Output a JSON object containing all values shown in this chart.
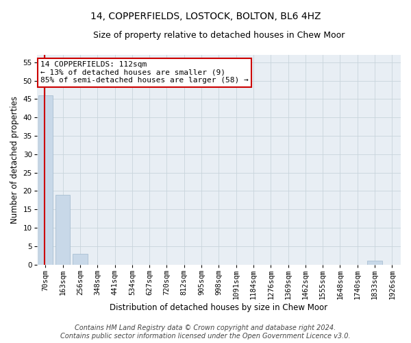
{
  "title": "14, COPPERFIELDS, LOSTOCK, BOLTON, BL6 4HZ",
  "subtitle": "Size of property relative to detached houses in Chew Moor",
  "xlabel": "Distribution of detached houses by size in Chew Moor",
  "ylabel": "Number of detached properties",
  "categories": [
    "70sqm",
    "163sqm",
    "256sqm",
    "348sqm",
    "441sqm",
    "534sqm",
    "627sqm",
    "720sqm",
    "812sqm",
    "905sqm",
    "998sqm",
    "1091sqm",
    "1184sqm",
    "1276sqm",
    "1369sqm",
    "1462sqm",
    "1555sqm",
    "1648sqm",
    "1740sqm",
    "1833sqm",
    "1926sqm"
  ],
  "values": [
    46,
    19,
    3,
    0,
    0,
    0,
    0,
    0,
    0,
    0,
    0,
    0,
    0,
    0,
    0,
    0,
    0,
    0,
    0,
    1,
    0
  ],
  "bar_color": "#c8d8e8",
  "bar_edge_color": "#a0b8cc",
  "red_line_x": -0.07,
  "annotation_line1": "14 COPPERFIELDS: 112sqm",
  "annotation_line2": "← 13% of detached houses are smaller (9)",
  "annotation_line3": "85% of semi-detached houses are larger (58) →",
  "annotation_box_color": "#ffffff",
  "annotation_box_edge_color": "#cc0000",
  "ylim": [
    0,
    57
  ],
  "yticks": [
    0,
    5,
    10,
    15,
    20,
    25,
    30,
    35,
    40,
    45,
    50,
    55
  ],
  "grid_color": "#c8d4dc",
  "footer_line1": "Contains HM Land Registry data © Crown copyright and database right 2024.",
  "footer_line2": "Contains public sector information licensed under the Open Government Licence v3.0.",
  "bg_color": "#e8eef4",
  "title_fontsize": 10,
  "subtitle_fontsize": 9,
  "axis_label_fontsize": 8.5,
  "tick_fontsize": 7.5,
  "annotation_fontsize": 8,
  "footer_fontsize": 7
}
